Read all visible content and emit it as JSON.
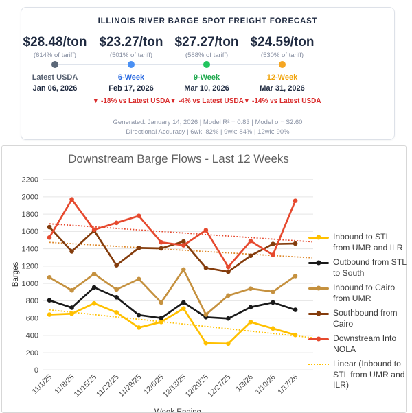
{
  "forecast": {
    "title": "ILLINOIS RIVER BARGE SPOT FREIGHT FORECAST",
    "columns": [
      {
        "price": "$28.48/ton",
        "tariff": "(614% of tariff)",
        "label": "Latest USDA",
        "date": "Jan 06, 2026",
        "change": "",
        "label_color": "#566070",
        "dot_color": "#5c6878"
      },
      {
        "price": "$23.27/ton",
        "tariff": "(501% of tariff)",
        "label": "6-Week",
        "date": "Feb 17, 2026",
        "change": "▼ -18% vs Latest USDA",
        "label_color": "#2b6be0",
        "dot_color": "#4a90f4"
      },
      {
        "price": "$27.27/ton",
        "tariff": "(588% of tariff)",
        "label": "9-Week",
        "date": "Mar 10, 2026",
        "change": "▼ -4% vs Latest USDA",
        "label_color": "#1fa94e",
        "dot_color": "#22c55e"
      },
      {
        "price": "$24.59/ton",
        "tariff": "(530% of tariff)",
        "label": "12-Week",
        "date": "Mar 31, 2026",
        "change": "▼ -14% vs Latest USDA",
        "label_color": "#f0a30a",
        "dot_color": "#f5a623"
      }
    ],
    "footer_line1": "Generated: January 14, 2026  |  Model R² = 0.83  |  Model σ = $2.60",
    "footer_line2": "Directional Accuracy  |  6wk: 82%  |  9wk: 84%  |  12wk: 90%"
  },
  "chart_data": {
    "type": "line",
    "title": "Downstream Barge Flows - Last 12 Weeks",
    "xlabel": "Week Ending",
    "ylabel": "Barges",
    "ylim": [
      0,
      2200
    ],
    "ytick_step": 200,
    "grid": true,
    "legend_position": "right",
    "categories": [
      "11/1/25",
      "11/8/25",
      "11/15/25",
      "11/22/25",
      "11/29/25",
      "12/6/25",
      "12/13/25",
      "12/20/25",
      "12/27/25",
      "1/3/26",
      "1/10/26",
      "1/17/26"
    ],
    "series": [
      {
        "name": "Inbound to STL from UMR and ILR",
        "color": "#FFC000",
        "values": [
          640,
          650,
          770,
          665,
          490,
          555,
          710,
          310,
          305,
          555,
          480,
          405
        ]
      },
      {
        "name": "Outbound from STL to South",
        "color": "#1a1a1a",
        "values": [
          805,
          720,
          955,
          840,
          635,
          600,
          780,
          610,
          595,
          725,
          780,
          695
        ]
      },
      {
        "name": "Inbound to Cairo from UMR",
        "color": "#c5913f",
        "values": [
          1070,
          920,
          1110,
          930,
          1050,
          780,
          1160,
          640,
          860,
          940,
          905,
          1085
        ]
      },
      {
        "name": "Southbound from Cairo",
        "color": "#843c0c",
        "values": [
          1650,
          1370,
          1610,
          1210,
          1410,
          1405,
          1485,
          1180,
          1135,
          1320,
          1455,
          1460
        ]
      },
      {
        "name": "Downstream Into NOLA",
        "color": "#e6492e",
        "values": [
          1530,
          1970,
          1620,
          1700,
          1780,
          1475,
          1440,
          1615,
          1190,
          1490,
          1330,
          1955
        ]
      }
    ],
    "trendlines": [
      {
        "series": 0,
        "color": "#FFC000",
        "label": "Linear (Inbound to STL from UMR and ILR)"
      },
      {
        "series": 3,
        "color": "#dd8627",
        "label": null
      },
      {
        "series": 4,
        "color": "#e6492e",
        "label": null
      }
    ],
    "gridline_color": "#e5e5e5",
    "axis_text_color": "#4a4a4a"
  }
}
